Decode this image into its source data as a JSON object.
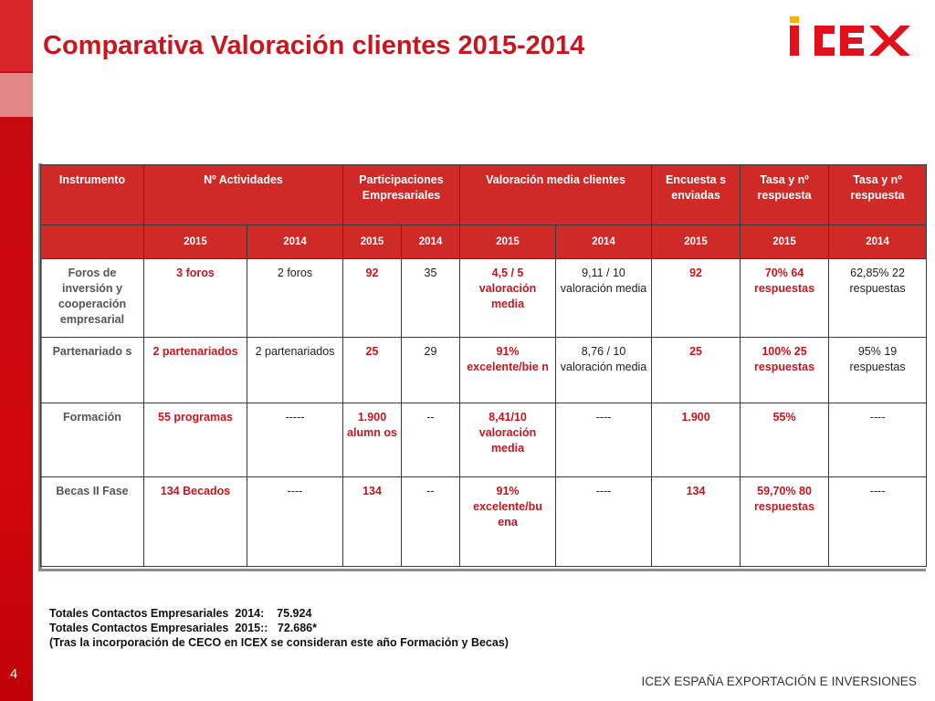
{
  "slide": {
    "title": "Comparativa Valoración clientes 2015-2014",
    "number": "4",
    "footer": "ICEX ESPAÑA EXPORTACIÓN E INVERSIONES",
    "logo_text": "ICEX"
  },
  "colors": {
    "brand_red": "#c8161e",
    "header_bg": "#cf2a28",
    "sidebar": "#cf0a10"
  },
  "table": {
    "headers": {
      "instrumento": "Instrumento",
      "actividades": "Nº Actividades",
      "participaciones": "Participaciones Empresariales",
      "valoracion": "Valoración media clientes",
      "encuestas": "Encuesta s enviadas",
      "tasa1": "Tasa y nº respuesta",
      "tasa2": "Tasa y nº respuesta"
    },
    "years": [
      "2015",
      "2014",
      "2015",
      "2014",
      "2015",
      "2014",
      "2015",
      "2015",
      "2014"
    ],
    "rows": [
      {
        "label": "Foros de inversión y cooperación empresarial",
        "cells": [
          "3 foros",
          "2 foros",
          "92",
          "35",
          "4,5 / 5 valoración media",
          "9,11 / 10 valoración media",
          "92",
          "70% 64 respuestas",
          "62,85% 22 respuestas"
        ]
      },
      {
        "label": "Partenariado s",
        "cells": [
          "2 partenariados",
          "2 partenariados",
          "25",
          "29",
          "91% excelente/bie n",
          "8,76 / 10 valoración media",
          "25",
          "100% 25 respuestas",
          "95% 19 respuestas"
        ]
      },
      {
        "label": "Formación",
        "cells": [
          "55 programas",
          "-----",
          "1.900 alumn os",
          "--",
          "8,41/10 valoración media",
          "----",
          "1.900",
          "55%",
          "----"
        ]
      },
      {
        "label": "Becas II Fase",
        "cells": [
          "134 Becados",
          "----",
          "134",
          "--",
          "91% excelente/bu ena",
          "----",
          "134",
          "59,70% 80 respuestas",
          "----"
        ]
      }
    ]
  },
  "notes": [
    "Totales Contactos Empresariales  2014:    75.924",
    "Totales Contactos Empresariales  2015::   72.686*",
    "(Tras la incorporación de CECO en ICEX se consideran este año Formación y Becas)"
  ]
}
